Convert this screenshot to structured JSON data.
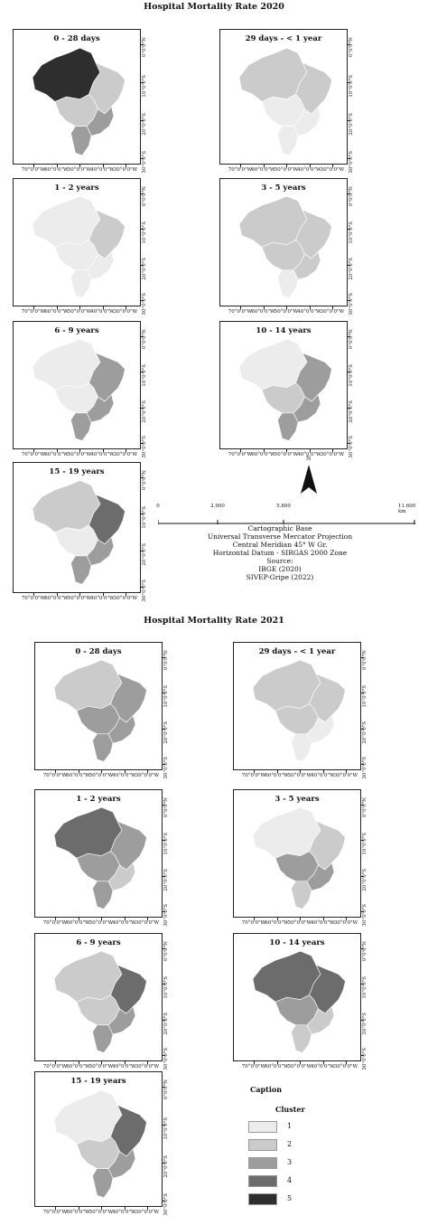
{
  "title_2020": "Hospital Mortality Rate 2020",
  "title_2021": "Hospital Mortality Rate 2021",
  "cluster_colors": {
    "1": "#ececec",
    "2": "#cbcbcb",
    "3": "#9d9d9d",
    "4": "#6c6c6c",
    "5": "#2e2e2e"
  },
  "lat_labels": [
    "0°0'0\"N",
    "10°0'0\"S",
    "20°0'0\"S",
    "30°0'0\"S"
  ],
  "lon_labels": [
    "70°0'0\"W",
    "60°0'0\"W",
    "50°0'0\"W",
    "40°0'0\"W",
    "30°0'0\"W"
  ],
  "panels_2020": [
    {
      "label": "0 - 28 days",
      "north": 5,
      "northeast": 2,
      "centerwest": 2,
      "southeast": 3,
      "south": 3
    },
    {
      "label": "29 days - < 1 year",
      "north": 2,
      "northeast": 2,
      "centerwest": 1,
      "southeast": 1,
      "south": 1
    },
    {
      "label": "1 - 2 years",
      "north": 1,
      "northeast": 2,
      "centerwest": 1,
      "southeast": 1,
      "south": 1
    },
    {
      "label": "3 - 5 years",
      "north": 2,
      "northeast": 2,
      "centerwest": 2,
      "southeast": 2,
      "south": 1
    },
    {
      "label": "6 - 9 years",
      "north": 1,
      "northeast": 3,
      "centerwest": 1,
      "southeast": 3,
      "south": 3
    },
    {
      "label": "10 - 14 years",
      "north": 1,
      "northeast": 3,
      "centerwest": 2,
      "southeast": 3,
      "south": 3
    },
    {
      "label": "15 - 19 years",
      "north": 2,
      "northeast": 4,
      "centerwest": 1,
      "southeast": 3,
      "south": 3
    }
  ],
  "panels_2021": [
    {
      "label": "0 - 28 days",
      "north": 2,
      "northeast": 3,
      "centerwest": 3,
      "southeast": 3,
      "south": 3
    },
    {
      "label": "29 days - < 1 year",
      "north": 2,
      "northeast": 2,
      "centerwest": 2,
      "southeast": 1,
      "south": 1
    },
    {
      "label": "1 - 2 years",
      "north": 4,
      "northeast": 3,
      "centerwest": 3,
      "southeast": 2,
      "south": 3
    },
    {
      "label": "3 - 5 years",
      "north": 1,
      "northeast": 2,
      "centerwest": 3,
      "southeast": 3,
      "south": 2
    },
    {
      "label": "6 - 9 years",
      "north": 2,
      "northeast": 4,
      "centerwest": 2,
      "southeast": 3,
      "south": 3
    },
    {
      "label": "10 - 14 years",
      "north": 4,
      "northeast": 4,
      "centerwest": 3,
      "southeast": 2,
      "south": 2
    },
    {
      "label": "15 - 19 years",
      "north": 1,
      "northeast": 4,
      "centerwest": 2,
      "southeast": 3,
      "south": 3
    }
  ],
  "north_arrow": "N",
  "scale_bar": {
    "ticks": [
      "0",
      "2.900",
      "5.800",
      "11.600 km"
    ]
  },
  "map_info": {
    "line1": "Cartographic Base",
    "line2": "Universal Transverse Mercator Projection",
    "line3": "Central Meridian 45° W Gr.",
    "line4": "Horizontal Datum - SIRGAS 2000 Zone",
    "line5": "Source:",
    "line6": "IBGE (2020)",
    "line7": "SIVEP-Gripe (2022)"
  },
  "legend": {
    "caption": "Caption",
    "subtitle": "Cluster",
    "items": [
      "1",
      "2",
      "3",
      "4",
      "5"
    ]
  }
}
